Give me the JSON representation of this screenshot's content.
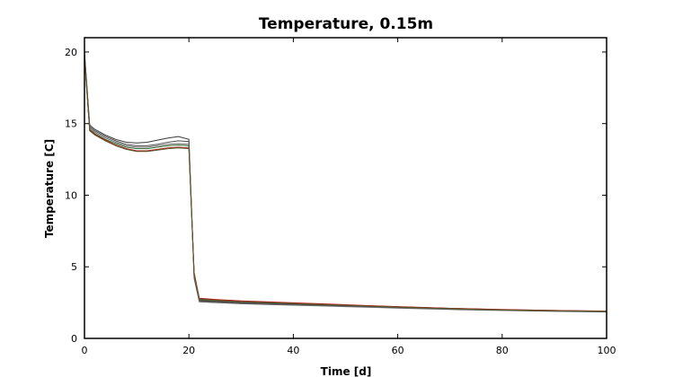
{
  "chart_data": {
    "type": "line",
    "title": "Temperature, 0.15m",
    "xlabel": "Time [d]",
    "ylabel": "Temperature [C]",
    "xlim": [
      0,
      100
    ],
    "ylim": [
      0,
      21
    ],
    "xticks": [
      0,
      20,
      40,
      60,
      80,
      100
    ],
    "yticks": [
      0,
      5,
      10,
      15,
      20
    ],
    "grid": false,
    "x": [
      0,
      1,
      2,
      4,
      6,
      8,
      10,
      12,
      14,
      16,
      18,
      20,
      21,
      22,
      25,
      30,
      35,
      40,
      45,
      50,
      55,
      60,
      65,
      70,
      75,
      80,
      85,
      90,
      95,
      100
    ],
    "series": [
      {
        "color": "#3a3a3a",
        "values": [
          20.0,
          14.9,
          14.6,
          14.2,
          13.9,
          13.7,
          13.65,
          13.7,
          13.85,
          14.0,
          14.1,
          13.9,
          4.4,
          2.65,
          2.6,
          2.5,
          2.45,
          2.4,
          2.35,
          2.3,
          2.25,
          2.2,
          2.15,
          2.1,
          2.05,
          2.0,
          1.98,
          1.95,
          1.92,
          1.9
        ]
      },
      {
        "color": "#4e4e4e",
        "values": [
          19.9,
          14.8,
          14.5,
          14.1,
          13.8,
          13.55,
          13.45,
          13.45,
          13.55,
          13.7,
          13.8,
          13.75,
          4.3,
          2.6,
          2.55,
          2.45,
          2.4,
          2.35,
          2.3,
          2.25,
          2.2,
          2.15,
          2.1,
          2.05,
          2.0,
          1.97,
          1.94,
          1.91,
          1.88,
          1.86
        ]
      },
      {
        "color": "#666666",
        "values": [
          19.8,
          14.7,
          14.4,
          14.0,
          13.7,
          13.45,
          13.35,
          13.35,
          13.45,
          13.55,
          13.6,
          13.55,
          4.2,
          2.55,
          2.5,
          2.42,
          2.37,
          2.32,
          2.27,
          2.22,
          2.17,
          2.12,
          2.07,
          2.02,
          1.98,
          1.95,
          1.92,
          1.89,
          1.86,
          1.84
        ]
      },
      {
        "color": "#2e6b2e",
        "values": [
          19.7,
          14.6,
          14.3,
          13.9,
          13.6,
          13.35,
          13.25,
          13.25,
          13.35,
          13.45,
          13.5,
          13.45,
          4.5,
          2.75,
          2.7,
          2.6,
          2.52,
          2.45,
          2.38,
          2.32,
          2.26,
          2.2,
          2.15,
          2.1,
          2.05,
          2.0,
          1.97,
          1.94,
          1.92,
          1.9
        ]
      },
      {
        "color": "#b01a1a",
        "values": [
          19.6,
          14.55,
          14.25,
          13.85,
          13.5,
          13.25,
          13.1,
          13.1,
          13.2,
          13.3,
          13.35,
          13.3,
          4.6,
          2.8,
          2.72,
          2.62,
          2.55,
          2.48,
          2.42,
          2.35,
          2.28,
          2.22,
          2.16,
          2.1,
          2.06,
          2.02,
          1.98,
          1.95,
          1.93,
          1.91
        ]
      },
      {
        "color": "#5a5a2a",
        "values": [
          19.65,
          14.5,
          14.2,
          13.8,
          13.45,
          13.2,
          13.05,
          13.05,
          13.15,
          13.25,
          13.3,
          13.25,
          4.45,
          2.7,
          2.65,
          2.55,
          2.5,
          2.43,
          2.37,
          2.31,
          2.25,
          2.19,
          2.13,
          2.08,
          2.03,
          1.99,
          1.96,
          1.93,
          1.91,
          1.89
        ]
      }
    ]
  }
}
